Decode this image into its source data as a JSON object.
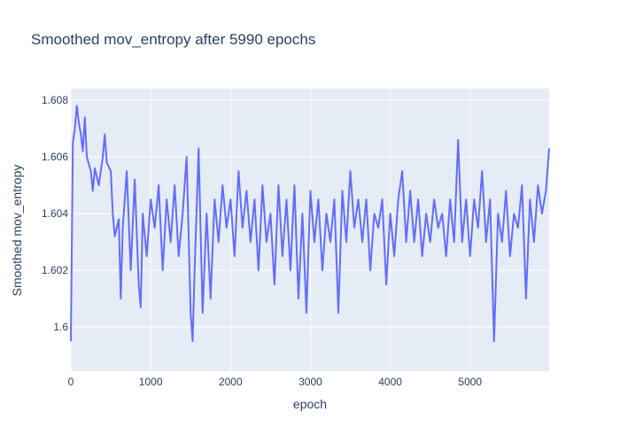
{
  "chart_data": {
    "type": "line",
    "title": "Smoothed mov_entropy after 5990 epochs",
    "x_label": "epoch",
    "y_label": "Smoothed mov_entropy",
    "color": "#636efa",
    "grid": true,
    "xlim": [
      0,
      5990
    ],
    "ylim": [
      1.59844,
      1.60841
    ],
    "xticks": [
      0,
      1000,
      2000,
      3000,
      4000,
      5000
    ],
    "yticks": [
      1.6,
      1.602,
      1.604,
      1.606,
      1.608
    ],
    "x": [
      0,
      25,
      50,
      75,
      100,
      125,
      150,
      175,
      200,
      250,
      275,
      300,
      350,
      400,
      425,
      450,
      500,
      525,
      550,
      600,
      625,
      650,
      700,
      750,
      800,
      850,
      875,
      900,
      950,
      1000,
      1050,
      1100,
      1150,
      1200,
      1250,
      1300,
      1350,
      1400,
      1450,
      1500,
      1525,
      1550,
      1600,
      1650,
      1700,
      1750,
      1800,
      1850,
      1900,
      1950,
      2000,
      2050,
      2100,
      2150,
      2200,
      2250,
      2300,
      2350,
      2400,
      2450,
      2500,
      2550,
      2600,
      2650,
      2700,
      2750,
      2800,
      2850,
      2900,
      2950,
      3000,
      3050,
      3100,
      3150,
      3200,
      3250,
      3300,
      3350,
      3400,
      3450,
      3500,
      3550,
      3600,
      3650,
      3700,
      3750,
      3800,
      3850,
      3900,
      3950,
      4000,
      4050,
      4100,
      4150,
      4200,
      4250,
      4300,
      4350,
      4400,
      4450,
      4500,
      4550,
      4600,
      4650,
      4700,
      4750,
      4800,
      4850,
      4900,
      4950,
      5000,
      5050,
      5100,
      5150,
      5200,
      5250,
      5300,
      5350,
      5400,
      5450,
      5500,
      5550,
      5600,
      5650,
      5700,
      5750,
      5800,
      5850,
      5900,
      5950,
      5990
    ],
    "values": [
      1.5995,
      1.6065,
      1.607,
      1.6078,
      1.6072,
      1.6068,
      1.6062,
      1.6074,
      1.606,
      1.6055,
      1.6048,
      1.6056,
      1.605,
      1.606,
      1.6068,
      1.6058,
      1.6055,
      1.604,
      1.6032,
      1.6038,
      1.601,
      1.6035,
      1.6055,
      1.602,
      1.6052,
      1.6015,
      1.6007,
      1.604,
      1.6025,
      1.6045,
      1.6035,
      1.605,
      1.602,
      1.6045,
      1.603,
      1.605,
      1.6025,
      1.604,
      1.606,
      1.6005,
      1.5995,
      1.602,
      1.6063,
      1.6005,
      1.604,
      1.601,
      1.6045,
      1.603,
      1.605,
      1.6035,
      1.6045,
      1.6025,
      1.6055,
      1.6035,
      1.6048,
      1.603,
      1.6045,
      1.602,
      1.605,
      1.603,
      1.604,
      1.6015,
      1.605,
      1.6025,
      1.6045,
      1.602,
      1.605,
      1.601,
      1.604,
      1.6005,
      1.6048,
      1.603,
      1.6045,
      1.602,
      1.604,
      1.603,
      1.6045,
      1.6005,
      1.6048,
      1.603,
      1.6055,
      1.6035,
      1.6045,
      1.603,
      1.6045,
      1.602,
      1.604,
      1.6035,
      1.6045,
      1.6015,
      1.604,
      1.6025,
      1.6045,
      1.6055,
      1.603,
      1.6048,
      1.603,
      1.6045,
      1.6025,
      1.604,
      1.603,
      1.6045,
      1.6035,
      1.604,
      1.6025,
      1.6045,
      1.603,
      1.6066,
      1.603,
      1.6045,
      1.6025,
      1.6045,
      1.6035,
      1.6055,
      1.603,
      1.6045,
      1.5995,
      1.604,
      1.603,
      1.6048,
      1.6025,
      1.604,
      1.6035,
      1.605,
      1.601,
      1.6045,
      1.603,
      1.605,
      1.604,
      1.6048,
      1.6063
    ]
  }
}
